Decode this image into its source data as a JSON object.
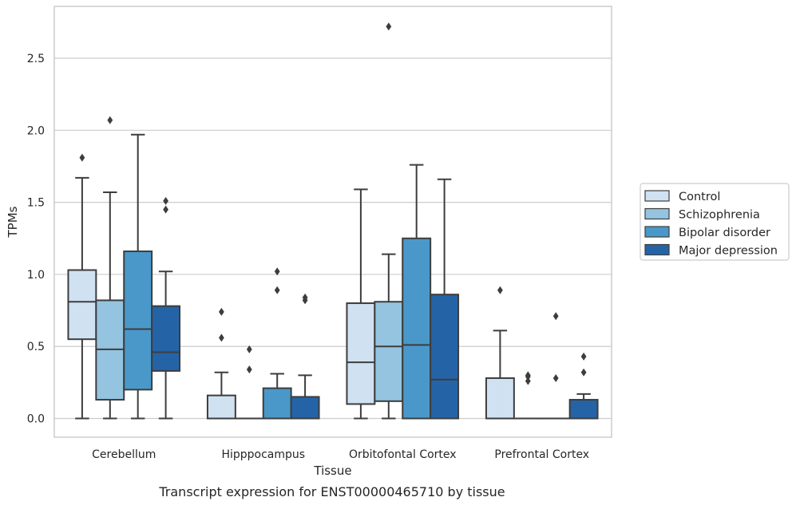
{
  "caption": "Transcript expression for ENST00000465710 by tissue",
  "chart_data": {
    "type": "boxplot",
    "xlabel": "Tissue",
    "ylabel": "TPMs",
    "ylim": [
      -0.13,
      2.86
    ],
    "yticks": [
      "0.0",
      "0.5",
      "1.0",
      "1.5",
      "2.0",
      "2.5"
    ],
    "ytick_values": [
      0.0,
      0.5,
      1.0,
      1.5,
      2.0,
      2.5
    ],
    "grid": true,
    "legend_position": "right-outside",
    "categories": [
      "Cerebellum",
      "Hipppocampus",
      "Orbitofontal Cortex",
      "Prefrontal Cortex"
    ],
    "series": [
      {
        "name": "Control",
        "color": "#d0e1f2",
        "boxes": [
          {
            "q1": 0.55,
            "median": 0.81,
            "q3": 1.03,
            "whisker_low": 0.0,
            "whisker_high": 1.67,
            "outliers": [
              1.81
            ]
          },
          {
            "q1": 0.0,
            "median": 0.0,
            "q3": 0.16,
            "whisker_low": 0.0,
            "whisker_high": 0.32,
            "outliers": [
              0.56,
              0.74
            ]
          },
          {
            "q1": 0.1,
            "median": 0.39,
            "q3": 0.8,
            "whisker_low": 0.0,
            "whisker_high": 1.59,
            "outliers": []
          },
          {
            "q1": 0.0,
            "median": 0.0,
            "q3": 0.28,
            "whisker_low": 0.0,
            "whisker_high": 0.61,
            "outliers": [
              0.89
            ]
          }
        ]
      },
      {
        "name": "Schizophrenia",
        "color": "#94c4df",
        "boxes": [
          {
            "q1": 0.13,
            "median": 0.48,
            "q3": 0.82,
            "whisker_low": 0.0,
            "whisker_high": 1.57,
            "outliers": [
              2.07
            ]
          },
          {
            "q1": 0.0,
            "median": 0.0,
            "q3": 0.0,
            "whisker_low": 0.0,
            "whisker_high": 0.0,
            "outliers": [
              0.34,
              0.48
            ]
          },
          {
            "q1": 0.12,
            "median": 0.5,
            "q3": 0.81,
            "whisker_low": 0.0,
            "whisker_high": 1.14,
            "outliers": [
              2.72
            ]
          },
          {
            "q1": 0.0,
            "median": 0.0,
            "q3": 0.0,
            "whisker_low": 0.0,
            "whisker_high": 0.0,
            "outliers": [
              0.26,
              0.29,
              0.3
            ]
          }
        ]
      },
      {
        "name": "Bipolar disorder",
        "color": "#4a98c9",
        "boxes": [
          {
            "q1": 0.2,
            "median": 0.62,
            "q3": 1.16,
            "whisker_low": 0.0,
            "whisker_high": 1.97,
            "outliers": []
          },
          {
            "q1": 0.0,
            "median": 0.0,
            "q3": 0.21,
            "whisker_low": 0.0,
            "whisker_high": 0.31,
            "outliers": [
              0.89,
              1.02
            ]
          },
          {
            "q1": 0.0,
            "median": 0.51,
            "q3": 1.25,
            "whisker_low": 0.0,
            "whisker_high": 1.76,
            "outliers": []
          },
          {
            "q1": 0.0,
            "median": 0.0,
            "q3": 0.0,
            "whisker_low": 0.0,
            "whisker_high": 0.0,
            "outliers": [
              0.28,
              0.71
            ]
          }
        ]
      },
      {
        "name": "Major depression",
        "color": "#2464a6",
        "boxes": [
          {
            "q1": 0.33,
            "median": 0.46,
            "q3": 0.78,
            "whisker_low": 0.0,
            "whisker_high": 1.02,
            "outliers": [
              1.45,
              1.51
            ]
          },
          {
            "q1": 0.0,
            "median": 0.0,
            "q3": 0.15,
            "whisker_low": 0.0,
            "whisker_high": 0.3,
            "outliers": [
              0.82,
              0.84
            ]
          },
          {
            "q1": 0.0,
            "median": 0.27,
            "q3": 0.86,
            "whisker_low": 0.0,
            "whisker_high": 1.66,
            "outliers": []
          },
          {
            "q1": 0.0,
            "median": 0.0,
            "q3": 0.13,
            "whisker_low": 0.0,
            "whisker_high": 0.17,
            "outliers": [
              0.32,
              0.43
            ]
          }
        ]
      }
    ]
  }
}
